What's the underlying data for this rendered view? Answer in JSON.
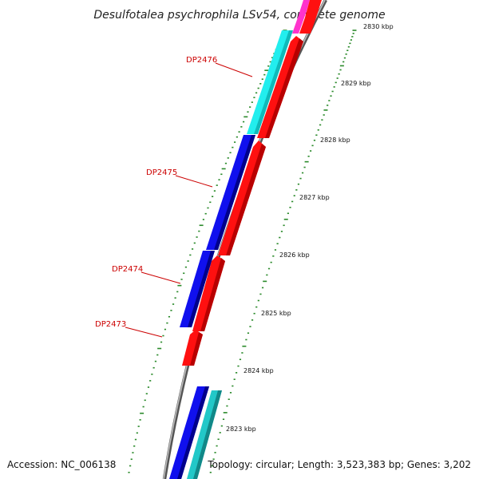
{
  "title": "Desulfotalea psychrophila LSv54, complete genome",
  "footer": {
    "accession": "Accession: NC_006138",
    "topology": "Topology: circular; Length: 3,523,383 bp; Genes: 3,202"
  },
  "colors": {
    "backbone": "#8a8a8a",
    "tick": "#2a8a2a",
    "reverse_strand": "#1010ee",
    "forward_strand": "#ff1010",
    "cyan_feature": "#22eeee",
    "teal_feature": "#22c8c8",
    "magenta_feature": "#ff33cc",
    "label": "#cc0000"
  },
  "scale_labels": [
    {
      "kbp": 2830,
      "label": "2830 kbp"
    },
    {
      "kbp": 2829,
      "label": "2829 kbp"
    },
    {
      "kbp": 2828,
      "label": "2828 kbp"
    },
    {
      "kbp": 2827,
      "label": "2827 kbp"
    },
    {
      "kbp": 2826,
      "label": "2826 kbp"
    },
    {
      "kbp": 2825,
      "label": "2825 kbp"
    },
    {
      "kbp": 2824,
      "label": "2824 kbp"
    },
    {
      "kbp": 2823,
      "label": "2823 kbp"
    }
  ],
  "genes": [
    {
      "name": "DP2476",
      "label": "DP2476"
    },
    {
      "name": "DP2475",
      "label": "DP2475"
    },
    {
      "name": "DP2474",
      "label": "DP2474"
    },
    {
      "name": "DP2473",
      "label": "DP2473"
    }
  ]
}
